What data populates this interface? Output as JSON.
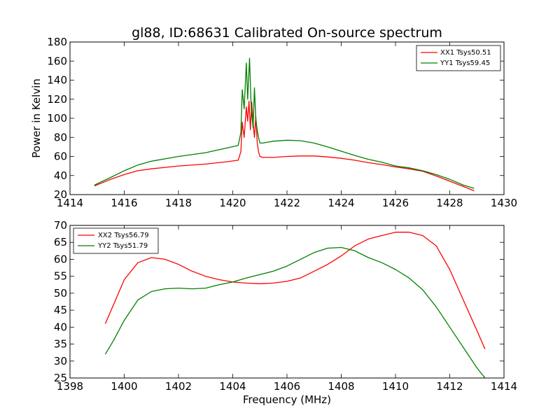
{
  "chart_data": {
    "type": "line",
    "title": "gl88, ID:68631 Calibrated On-source spectrum",
    "charts": [
      {
        "id": "top",
        "ylabel": "Power in Kelvin",
        "xlabel": "",
        "xlim": [
          1414,
          1430
        ],
        "ylim": [
          20,
          180
        ],
        "xticks": [
          1414,
          1416,
          1418,
          1420,
          1422,
          1424,
          1426,
          1428,
          1430
        ],
        "yticks": [
          20,
          40,
          60,
          80,
          100,
          120,
          140,
          160,
          180
        ],
        "legend_position": "top-right",
        "grid": false,
        "series": [
          {
            "name": "XX1 Tsys50.51",
            "color": "#ff0000",
            "x": [
              1414.9,
              1415.5,
              1416,
              1416.5,
              1417,
              1418,
              1419,
              1419.8,
              1420.2,
              1420.3,
              1420.35,
              1420.42,
              1420.5,
              1420.55,
              1420.6,
              1420.65,
              1420.7,
              1420.75,
              1420.8,
              1420.85,
              1420.9,
              1420.95,
              1421.0,
              1421.1,
              1421.5,
              1422,
              1422.5,
              1423,
              1423.5,
              1424,
              1424.5,
              1425,
              1425.5,
              1426,
              1426.5,
              1427,
              1427.5,
              1428,
              1428.5,
              1428.9
            ],
            "y": [
              29,
              36,
              41,
              45,
              47,
              50,
              52,
              54.5,
              56,
              65,
              96,
              80,
              112,
              97,
              118,
              88,
              117,
              95,
              80,
              102,
              75,
              65,
              60,
              59,
              59,
              60,
              60.5,
              60.5,
              59.5,
              58,
              56,
              53.5,
              51.5,
              49,
              47,
              44.5,
              39.5,
              34,
              28.5,
              24
            ]
          },
          {
            "name": "YY1 Tsys59.45",
            "color": "#008000",
            "x": [
              1414.9,
              1415.5,
              1416,
              1416.5,
              1417,
              1418,
              1419,
              1419.8,
              1420.2,
              1420.3,
              1420.35,
              1420.42,
              1420.5,
              1420.55,
              1420.62,
              1420.68,
              1420.75,
              1420.8,
              1420.85,
              1420.9,
              1420.95,
              1421.0,
              1421.1,
              1421.5,
              1422,
              1422.5,
              1423,
              1423.5,
              1424,
              1424.5,
              1425,
              1425.5,
              1426,
              1426.5,
              1427,
              1427.5,
              1428,
              1428.5,
              1428.9
            ],
            "y": [
              30,
              38,
              45,
              51,
              55,
              60,
              64,
              69,
              71.5,
              85,
              130,
              110,
              158,
              120,
              163,
              110,
              90,
              132,
              100,
              88,
              80,
              74,
              74,
              76,
              77,
              76.5,
              74,
              70,
              65.5,
              61,
              57,
              54,
              50,
              48,
              45,
              41,
              36,
              30,
              26.5
            ]
          }
        ]
      },
      {
        "id": "bottom",
        "ylabel": "",
        "xlabel": "Frequency (MHz)",
        "xlim": [
          1398,
          1414
        ],
        "ylim": [
          25,
          70
        ],
        "xticks": [
          1398,
          1400,
          1402,
          1404,
          1406,
          1408,
          1410,
          1412,
          1414
        ],
        "yticks": [
          25,
          30,
          35,
          40,
          45,
          50,
          55,
          60,
          65,
          70
        ],
        "legend_position": "top-left",
        "grid": false,
        "series": [
          {
            "name": "XX2 Tsys56.79",
            "color": "#ff0000",
            "x": [
              1399.3,
              1399.6,
              1400,
              1400.5,
              1401,
              1401.5,
              1402,
              1402.5,
              1403,
              1403.5,
              1404,
              1404.5,
              1405,
              1405.5,
              1406,
              1406.5,
              1407,
              1407.5,
              1408,
              1408.5,
              1409,
              1409.5,
              1410,
              1410.5,
              1411,
              1411.5,
              1412,
              1412.5,
              1413,
              1413.3
            ],
            "y": [
              41,
              46.5,
              54,
              59,
              60.5,
              60,
              58.5,
              56.5,
              55,
              54,
              53.3,
              53,
              52.8,
              53,
              53.5,
              54.5,
              56.5,
              58.5,
              61,
              64,
              66,
              67,
              68,
              68,
              67,
              64,
              57,
              48,
              39,
              33.5
            ]
          },
          {
            "name": "YY2 Tsys51.79",
            "color": "#008000",
            "x": [
              1399.3,
              1399.6,
              1400,
              1400.5,
              1401,
              1401.5,
              1402,
              1402.5,
              1403,
              1403.5,
              1404,
              1404.5,
              1405,
              1405.5,
              1406,
              1406.5,
              1407,
              1407.5,
              1408,
              1408.5,
              1409,
              1409.5,
              1410,
              1410.5,
              1411,
              1411.5,
              1412,
              1412.5,
              1413,
              1413.3
            ],
            "y": [
              32,
              36,
              42,
              48,
              50.5,
              51.3,
              51.5,
              51.3,
              51.5,
              52.5,
              53.3,
              54.5,
              55.5,
              56.5,
              58,
              60,
              62,
              63.3,
              63.5,
              62.5,
              60.5,
              59,
              57,
              54.5,
              51,
              46,
              40,
              34,
              28,
              25
            ]
          }
        ]
      }
    ]
  }
}
